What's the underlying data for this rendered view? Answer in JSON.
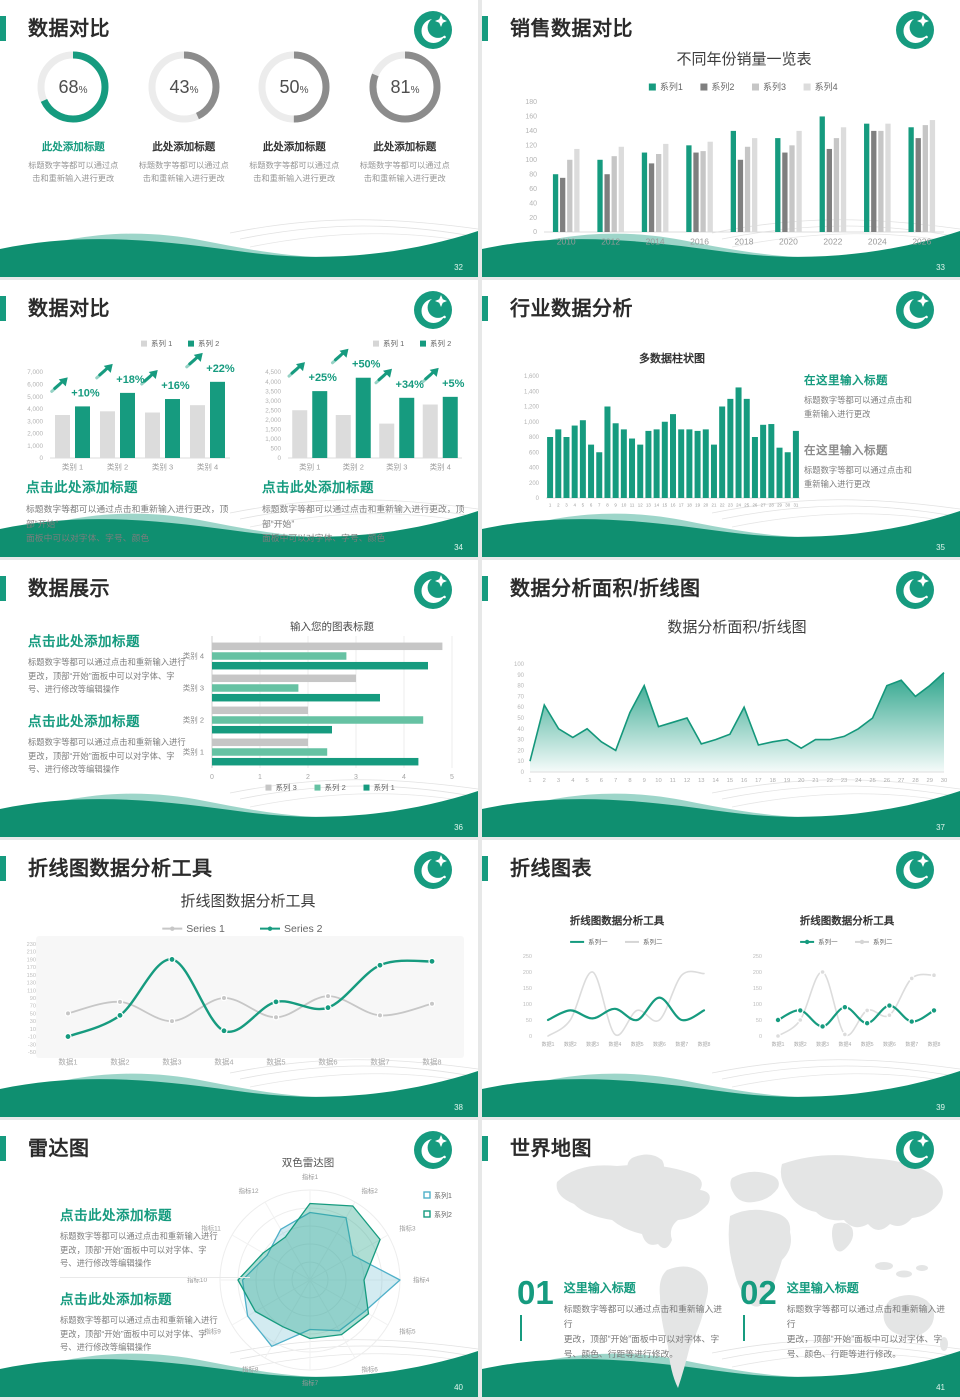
{
  "theme": {
    "green": "#169b7f",
    "green_dark": "#0f8f70",
    "green_light": "#66c2a3",
    "teal_blue": "#4fb0c9",
    "gray_dark": "#7f7f7f",
    "gray_mid": "#c6c6c6",
    "gray_light": "#dcdcdc",
    "text_dark": "#2b2b2b"
  },
  "slides": [
    {
      "name": "数据对比",
      "page": "32",
      "donuts": [
        {
          "value": 68,
          "suffix": "%",
          "title": "此处添加标题",
          "highlight": true,
          "desc": [
            "标题数字等都可以通过点",
            "击和重新输入进行更改"
          ]
        },
        {
          "value": 43,
          "suffix": "%",
          "title": "此处添加标题",
          "highlight": false,
          "desc": [
            "标题数字等都可以通过点",
            "击和重新输入进行更改"
          ]
        },
        {
          "value": 50,
          "suffix": "%",
          "title": "此处添加标题",
          "highlight": false,
          "desc": [
            "标题数字等都可以通过点",
            "击和重新输入进行更改"
          ]
        },
        {
          "value": 81,
          "suffix": "%",
          "title": "此处添加标题",
          "highlight": false,
          "desc": [
            "标题数字等都可以通过点",
            "击和重新输入进行更改"
          ]
        }
      ]
    },
    {
      "name": "销售数据对比",
      "page": "33",
      "chart": {
        "type": "bar",
        "title": "不同年份销量一览表",
        "ylim": [
          0,
          180
        ],
        "ystep": 20,
        "categories": [
          "2010",
          "2012",
          "2014",
          "2016",
          "2018",
          "2020",
          "2022",
          "2024",
          "2026"
        ],
        "series": [
          {
            "name": "系列1",
            "color": "#169b7f",
            "values": [
              80,
              100,
              110,
              120,
              140,
              130,
              160,
              150,
              145
            ]
          },
          {
            "name": "系列2",
            "color": "#7f7f7f",
            "values": [
              75,
              80,
              95,
              110,
              100,
              110,
              115,
              140,
              130
            ]
          },
          {
            "name": "系列3",
            "color": "#c6c6c6",
            "values": [
              100,
              105,
              108,
              112,
              118,
              120,
              130,
              140,
              148
            ]
          },
          {
            "name": "系列4",
            "color": "#dcdcdc",
            "values": [
              115,
              118,
              122,
              125,
              130,
              140,
              145,
              150,
              155
            ]
          }
        ]
      }
    },
    {
      "name": "数据对比",
      "page": "34",
      "charts": [
        {
          "type": "bar",
          "legend": [
            "系列 1",
            "系列 2"
          ],
          "categories": [
            "类别 1",
            "类别 2",
            "类别 3",
            "类别 4"
          ],
          "ylim": [
            0,
            7000
          ],
          "ystep": 1000,
          "series": [
            {
              "name": "系列 1",
              "color": "#dcdcdc",
              "values": [
                3500,
                3800,
                3700,
                4300
              ]
            },
            {
              "name": "系列 2",
              "color": "#169b7f",
              "values": [
                4200,
                5300,
                4800,
                6200
              ]
            }
          ],
          "growth_labels": [
            "+10%",
            "+18%",
            "+16%",
            "+22%"
          ]
        },
        {
          "type": "bar",
          "legend": [
            "系列 1",
            "系列 2"
          ],
          "categories": [
            "类别 1",
            "类别 2",
            "类别 3",
            "类别 4"
          ],
          "ylim": [
            0,
            4500
          ],
          "ystep": 500,
          "series": [
            {
              "name": "系列 1",
              "color": "#dcdcdc",
              "values": [
                2500,
                2250,
                1800,
                2800
              ]
            },
            {
              "name": "系列 2",
              "color": "#169b7f",
              "values": [
                3500,
                4200,
                3150,
                3200
              ]
            }
          ],
          "growth_labels": [
            "+25%",
            "+50%",
            "+34%",
            "+5%"
          ]
        }
      ],
      "blocks": [
        {
          "title": "点击此处添加标题",
          "desc": [
            "标题数字等都可以通过点击和重新输入进行更改，顶部“开始”",
            "面板中可以对字体、字号、颜色"
          ]
        },
        {
          "title": "点击此处添加标题",
          "desc": [
            "标题数字等都可以通过点击和重新输入进行更改，顶部“开始”",
            "面板中可以对字体、字号、颜色"
          ]
        }
      ]
    },
    {
      "name": "行业数据分析",
      "page": "35",
      "chart": {
        "type": "bar",
        "title": "多数据柱状图",
        "ylim": [
          0,
          1600
        ],
        "ystep": 200,
        "categories": [
          "1",
          "2",
          "3",
          "4",
          "5",
          "6",
          "7",
          "8",
          "9",
          "10",
          "11",
          "12",
          "13",
          "14",
          "15",
          "16",
          "17",
          "18",
          "19",
          "20",
          "21",
          "22",
          "23",
          "24",
          "25",
          "26",
          "27",
          "28",
          "29",
          "30",
          "31"
        ],
        "values": [
          800,
          900,
          800,
          950,
          1020,
          700,
          600,
          1200,
          980,
          900,
          780,
          700,
          880,
          900,
          1000,
          1100,
          900,
          900,
          880,
          900,
          700,
          1200,
          1300,
          1450,
          1300,
          800,
          960,
          970,
          660,
          600,
          880
        ]
      },
      "blocks": [
        {
          "title": "在这里输入标题",
          "highlight": true,
          "desc": [
            "标题数字等都可以通过点击和",
            "重新输入进行更改"
          ]
        },
        {
          "title": "在这里输入标题",
          "highlight": false,
          "desc": [
            "标题数字等都可以通过点击和",
            "重新输入进行更改"
          ]
        }
      ]
    },
    {
      "name": "数据展示",
      "page": "36",
      "blocks": [
        {
          "title": "点击此处添加标题",
          "desc": [
            "标题数字等都可以通过点击和重新输入进行",
            "更改，顶部“开始”面板中可以对字体、字",
            "号、进行修改等编辑操作"
          ]
        },
        {
          "title": "点击此处添加标题",
          "desc": [
            "标题数字等都可以通过点击和重新输入进行",
            "更改，顶部“开始”面板中可以对字体、字",
            "号、进行修改等编辑操作"
          ]
        }
      ],
      "chart": {
        "type": "hbar",
        "title": "输入您的图表标题",
        "xlim": [
          0,
          5
        ],
        "xstep": 1,
        "categories": [
          "类别 4",
          "类别 3",
          "类别 2",
          "类别 1"
        ],
        "series": [
          {
            "name": "系列 3",
            "color": "#c6c6c6",
            "values": [
              4.8,
              3.0,
              2.0,
              2.0
            ]
          },
          {
            "name": "系列 2",
            "color": "#66c2a3",
            "values": [
              2.8,
              1.8,
              4.4,
              2.4
            ]
          },
          {
            "name": "系列 1",
            "color": "#169b7f",
            "values": [
              4.5,
              3.5,
              2.5,
              4.3
            ]
          }
        ]
      }
    },
    {
      "name": "数据分析面积/折线图",
      "page": "37",
      "chart": {
        "type": "area",
        "title": "数据分析面积/折线图",
        "ylim": [
          0,
          100
        ],
        "ystep": 10,
        "x": [
          "1",
          "2",
          "3",
          "4",
          "5",
          "6",
          "7",
          "8",
          "9",
          "10",
          "11",
          "12",
          "13",
          "14",
          "15",
          "16",
          "17",
          "18",
          "19",
          "20",
          "21",
          "22",
          "23",
          "24",
          "25",
          "26",
          "27",
          "28",
          "29",
          "30"
        ],
        "values": [
          10,
          62,
          40,
          32,
          40,
          28,
          20,
          55,
          80,
          42,
          46,
          50,
          26,
          30,
          35,
          60,
          25,
          28,
          30,
          22,
          30,
          30,
          33,
          40,
          50,
          80,
          85,
          70,
          80,
          92
        ]
      }
    },
    {
      "name": "折线图数据分析工具",
      "page": "38",
      "chart": {
        "type": "line",
        "title": "折线图数据分析工具",
        "legend": [
          "Series 1",
          "Series 2"
        ],
        "categories": [
          "数据1",
          "数据2",
          "数据3",
          "数据4",
          "数据5",
          "数据6",
          "数据7",
          "数据8"
        ],
        "ylim": [
          -50,
          230
        ],
        "ystep": 20,
        "series": [
          {
            "name": "Series 1",
            "color": "#c7c7c7",
            "values": [
              50,
              80,
              30,
              90,
              40,
              95,
              45,
              75
            ]
          },
          {
            "name": "Series 2",
            "color": "#169b7f",
            "values": [
              -10,
              45,
              190,
              5,
              80,
              65,
              175,
              185
            ]
          }
        ]
      }
    },
    {
      "name": "折线图表",
      "page": "39",
      "charts": [
        {
          "type": "line",
          "title": "折线图数据分析工具",
          "legend": [
            "系列一",
            "系列二"
          ],
          "markers": false,
          "categories": [
            "数据1",
            "数据2",
            "数据3",
            "数据4",
            "数据5",
            "数据6",
            "数据7",
            "数据8"
          ],
          "ylim": [
            0,
            250
          ],
          "ystep": 50,
          "series": [
            {
              "name": "系列一",
              "color": "#169b7f",
              "values": [
                50,
                80,
                55,
                85,
                50,
                120,
                50,
                80
              ]
            },
            {
              "name": "系列二",
              "color": "#dcdcdc",
              "values": [
                0,
                50,
                200,
                5,
                80,
                50,
                190,
                195
              ]
            }
          ]
        },
        {
          "type": "line",
          "title": "折线图数据分析工具",
          "legend": [
            "系列一",
            "系列二"
          ],
          "markers": true,
          "categories": [
            "数据1",
            "数据2",
            "数据3",
            "数据4",
            "数据5",
            "数据6",
            "数据7",
            "数据8"
          ],
          "ylim": [
            0,
            250
          ],
          "ystep": 50,
          "series": [
            {
              "name": "系列一",
              "color": "#169b7f",
              "values": [
                50,
                80,
                30,
                90,
                40,
                95,
                45,
                80
              ]
            },
            {
              "name": "系列二",
              "color": "#dcdcdc",
              "values": [
                0,
                50,
                200,
                5,
                80,
                65,
                180,
                190
              ]
            }
          ]
        }
      ]
    },
    {
      "name": "雷达图",
      "page": "40",
      "blocks": [
        {
          "title": "点击此处添加标题",
          "desc": [
            "标题数字等都可以通过点击和重新输入进行",
            "更改，顶部“开始”面板中可以对字体、字",
            "号、进行修改等编辑操作"
          ]
        },
        {
          "title": "点击此处添加标题",
          "desc": [
            "标题数字等都可以通过点击和重新输入进行",
            "更改，顶部“开始”面板中可以对字体、字",
            "号、进行修改等编辑操作"
          ]
        }
      ],
      "chart": {
        "type": "radar",
        "title": "双色雷达图",
        "legend": [
          "系列1",
          "系列2"
        ],
        "rmax": 100,
        "axes": [
          "指标1",
          "指标2",
          "指标3",
          "指标4",
          "指标5",
          "指标6",
          "指标7",
          "指标8",
          "指标9",
          "指标10",
          "指标11",
          "指标12"
        ],
        "series": [
          {
            "name": "系列1",
            "color": "#4fb0c9",
            "values": [
              75,
              80,
              55,
              100,
              70,
              65,
              55,
              85,
              80,
              75,
              55,
              65
            ]
          },
          {
            "name": "系列2",
            "color": "#169b7f",
            "values": [
              85,
              95,
              90,
              60,
              75,
              70,
              65,
              60,
              70,
              80,
              60,
              55
            ]
          }
        ]
      }
    },
    {
      "name": "世界地图",
      "page": "41",
      "items": [
        {
          "num": "01",
          "title": "这里输入标题",
          "desc": [
            "标题数字等都可以通过点击和重新输入进行",
            "更改，顶部“开始”面板中可以对字体、字",
            "号、颜色、行距等进行修改。"
          ]
        },
        {
          "num": "02",
          "title": "这里输入标题",
          "desc": [
            "标题数字等都可以通过点击和重新输入进行",
            "更改，顶部“开始”面板中可以对字体、字",
            "号、颜色、行距等进行修改。"
          ]
        }
      ]
    }
  ]
}
